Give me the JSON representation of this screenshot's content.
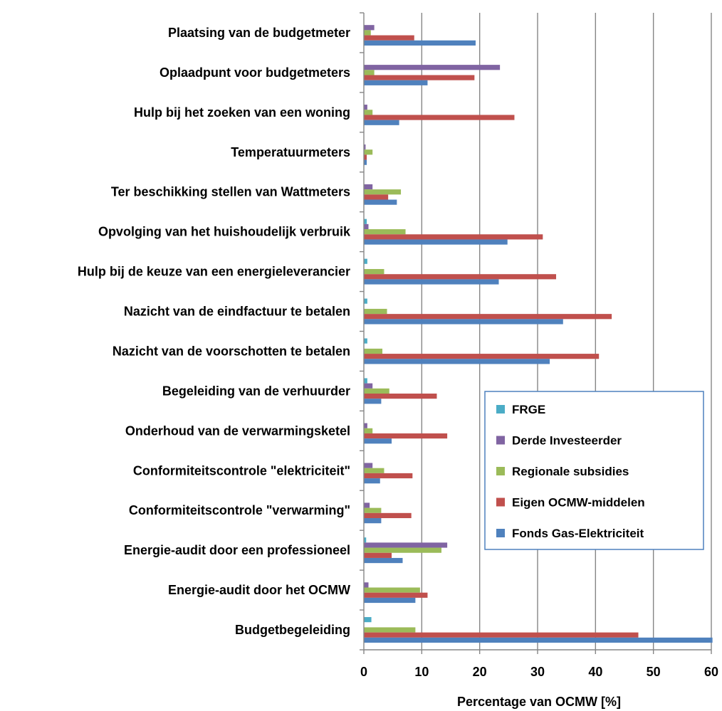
{
  "chart_data": {
    "type": "bar",
    "orientation": "horizontal",
    "title": "",
    "xlabel": "Percentage van OCMW [%]",
    "ylabel": "",
    "xlim": [
      0,
      60
    ],
    "xticks": [
      0,
      10,
      20,
      30,
      40,
      50,
      60
    ],
    "grid": "vertical",
    "legend_position": "right",
    "categories": [
      "Plaatsing van de budgetmeter",
      "Oplaadpunt voor budgetmeters",
      "Hulp bij het zoeken van een woning",
      "Temperatuurmeters",
      "Ter beschikking stellen van Wattmeters",
      "Opvolging van het huishoudelijk verbruik",
      "Hulp bij de keuze van een energieleverancier",
      "Nazicht van de eindfactuur te betalen",
      "Nazicht van de voorschotten te betalen",
      "Begeleiding van de verhuurder",
      "Onderhoud van de verwarmingsketel",
      "Conformiteitscontrole \"elektriciteit\"",
      "Conformiteitscontrole \"verwarming\"",
      "Energie-audit door een professioneel",
      "Energie-audit door het OCMW",
      "Budgetbegeleiding"
    ],
    "series": [
      {
        "name": "FRGE",
        "color": "#4BACC6",
        "values": [
          0,
          0,
          0,
          0,
          0,
          0.5,
          0.6,
          0.6,
          0.6,
          0.6,
          0,
          0,
          0,
          0.4,
          0,
          1.3
        ]
      },
      {
        "name": "Derde Investeerder",
        "color": "#8064A2",
        "values": [
          1.8,
          23.5,
          0.6,
          0.3,
          1.5,
          0.8,
          0,
          0,
          0,
          1.5,
          0.6,
          1.5,
          1.0,
          14.4,
          0.8,
          0
        ]
      },
      {
        "name": "Regionale subsidies",
        "color": "#9BBB59",
        "values": [
          1.2,
          1.8,
          1.5,
          1.5,
          6.4,
          7.2,
          3.5,
          4.0,
          3.2,
          4.4,
          1.5,
          3.5,
          3.0,
          13.4,
          9.7,
          8.9
        ]
      },
      {
        "name": "Eigen OCMW-middelen",
        "color": "#C0504D",
        "values": [
          8.7,
          19.1,
          26.0,
          0.5,
          4.2,
          30.9,
          33.2,
          42.8,
          40.6,
          12.6,
          14.4,
          8.4,
          8.2,
          4.8,
          11.0,
          47.4
        ]
      },
      {
        "name": "Fonds Gas-Elektriciteit",
        "color": "#4F81BD",
        "values": [
          19.3,
          11.0,
          6.1,
          0.5,
          5.7,
          24.8,
          23.3,
          34.4,
          32.1,
          3.0,
          4.8,
          2.8,
          3.0,
          6.7,
          8.9,
          60.2
        ]
      }
    ]
  }
}
